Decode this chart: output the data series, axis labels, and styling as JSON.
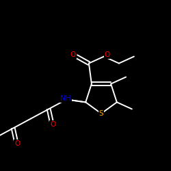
{
  "background_color": "#000000",
  "bond_color": "#ffffff",
  "atom_colors": {
    "O": "#ff0000",
    "N": "#0000ff",
    "S": "#ffa500",
    "C": "#ffffff",
    "H": "#ffffff"
  },
  "figsize": [
    2.5,
    2.5
  ],
  "dpi": 100
}
